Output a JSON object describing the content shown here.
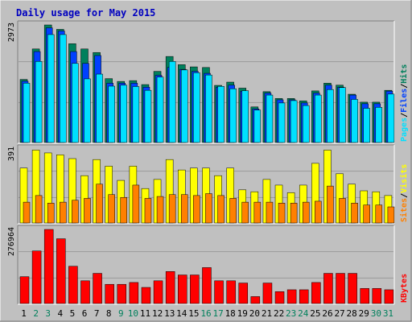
{
  "title": "Daily usage for May 2015",
  "colors": {
    "background": "#c0c0c0",
    "title": "#0000c0",
    "hits": "#00805c",
    "files": "#0040ff",
    "pages": "#00e0ff",
    "visits": "#ff8000",
    "sites": "#ffff00",
    "kbytes": "#ff0000",
    "weekend_label": "#00805c",
    "weekday_label": "#000000"
  },
  "chart_data": [
    {
      "type": "bar",
      "name": "Hits/Files/Pages",
      "ylim": [
        0,
        2973
      ],
      "y_tick_label": "2973",
      "right_label": [
        "Pages",
        "/",
        "Files",
        "/",
        "Hits"
      ],
      "categories": [
        "1",
        "2",
        "3",
        "4",
        "5",
        "6",
        "7",
        "8",
        "9",
        "10",
        "11",
        "12",
        "13",
        "14",
        "15",
        "16",
        "17",
        "18",
        "19",
        "20",
        "21",
        "22",
        "23",
        "24",
        "25",
        "26",
        "27",
        "28",
        "29",
        "30",
        "31"
      ],
      "series": [
        {
          "name": "Hits",
          "values": [
            1595,
            2366,
            2973,
            2862,
            2498,
            2366,
            2276,
            1615,
            1545,
            1565,
            1465,
            1799,
            2176,
            1968,
            1913,
            1897,
            1445,
            1527,
            1375,
            900,
            1286,
            1113,
            1113,
            1052,
            1305,
            1500,
            1450,
            1221,
            1020,
            1020,
            1320
          ]
        },
        {
          "name": "Files",
          "values": [
            1550,
            2300,
            2900,
            2820,
            2300,
            2000,
            2200,
            1500,
            1500,
            1500,
            1400,
            1700,
            1900,
            1850,
            1800,
            1750,
            1400,
            1450,
            1300,
            850,
            1250,
            1080,
            1080,
            1000,
            1250,
            1450,
            1400,
            1200,
            980,
            980,
            1300
          ]
        },
        {
          "name": "Pages",
          "values": [
            1500,
            2050,
            2730,
            2730,
            2000,
            1610,
            1730,
            1425,
            1450,
            1415,
            1320,
            1655,
            2050,
            1836,
            1765,
            1707,
            1420,
            1360,
            1310,
            820,
            1200,
            1000,
            1060,
            935,
            1200,
            1340,
            1390,
            1090,
            865,
            890,
            1225
          ]
        }
      ]
    },
    {
      "type": "bar",
      "name": "Visits/Sites",
      "ylim": [
        0,
        391
      ],
      "y_tick_label": "391",
      "right_label": [
        "Sites",
        "/",
        "Visits"
      ],
      "categories": [
        "1",
        "2",
        "3",
        "4",
        "5",
        "6",
        "7",
        "8",
        "9",
        "10",
        "11",
        "12",
        "13",
        "14",
        "15",
        "16",
        "17",
        "18",
        "19",
        "20",
        "21",
        "22",
        "23",
        "24",
        "25",
        "26",
        "27",
        "28",
        "29",
        "30",
        "31"
      ],
      "series": [
        {
          "name": "Visits",
          "values": [
            290,
            385,
            370,
            360,
            340,
            250,
            335,
            300,
            225,
            300,
            182,
            230,
            335,
            280,
            290,
            290,
            250,
            290,
            175,
            165,
            230,
            200,
            160,
            200,
            315,
            385,
            260,
            205,
            170,
            165,
            145
          ]
        },
        {
          "name": "Sites",
          "values": [
            110,
            145,
            105,
            110,
            120,
            130,
            205,
            150,
            135,
            200,
            130,
            140,
            150,
            150,
            145,
            155,
            145,
            130,
            110,
            110,
            110,
            105,
            105,
            110,
            115,
            195,
            130,
            105,
            95,
            95,
            85
          ]
        }
      ]
    },
    {
      "type": "bar",
      "name": "KBytes",
      "ylim": [
        0,
        276964
      ],
      "y_tick_label": "276964",
      "right_label": [
        "KBytes"
      ],
      "categories": [
        "1",
        "2",
        "3",
        "4",
        "5",
        "6",
        "7",
        "8",
        "9",
        "10",
        "11",
        "12",
        "13",
        "14",
        "15",
        "16",
        "17",
        "18",
        "19",
        "20",
        "21",
        "22",
        "23",
        "24",
        "25",
        "26",
        "27",
        "28",
        "29",
        "30",
        "31"
      ],
      "series": [
        {
          "name": "KBytes",
          "values": [
            100250,
            196455,
            276964,
            242127,
            139254,
            84843,
            112690,
            71610,
            71610,
            78577,
            60169,
            84843,
            119658,
            106723,
            106723,
            134281,
            84843,
            84843,
            76564,
            25846,
            76564,
            44421,
            51384,
            51384,
            78577,
            112690,
            112690,
            112690,
            56222,
            56222,
            51384
          ]
        }
      ]
    }
  ],
  "weekend_days": [
    2,
    3,
    9,
    10,
    16,
    17,
    23,
    24,
    30,
    31
  ]
}
